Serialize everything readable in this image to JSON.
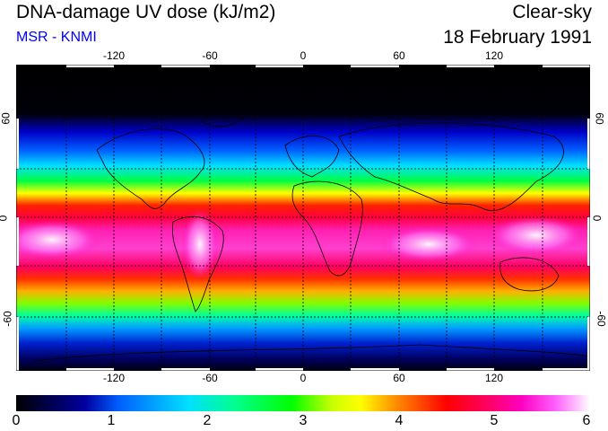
{
  "header": {
    "title": "DNA-damage UV dose (kJ/m2)",
    "subtitle": "MSR - KNMI",
    "mode": "Clear-sky",
    "date": "18 February 1991"
  },
  "map": {
    "lon_ticks": [
      "-120",
      "-60",
      "0",
      "60",
      "120"
    ],
    "lat_ticks": [
      "60",
      "0",
      "-60"
    ],
    "lat_ticks_right": [
      "60",
      "0",
      "-60"
    ],
    "colors": {
      "ocean_dark": "#000000",
      "land_outline": "#000000",
      "grid": "#000000"
    }
  },
  "colorbar": {
    "labels": [
      "0",
      "1",
      "2",
      "3",
      "4",
      "5",
      "6"
    ]
  }
}
